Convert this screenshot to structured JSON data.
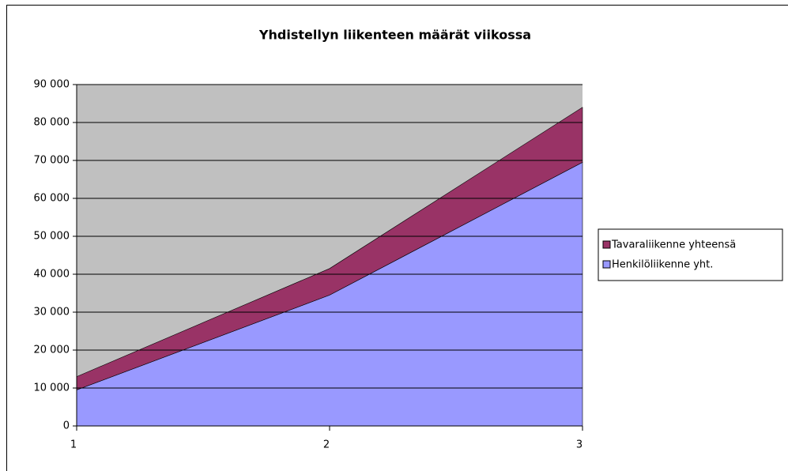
{
  "chart_data": {
    "type": "area",
    "stacked": true,
    "title": "Yhdistellyn liikenteen määrät viikossa",
    "categories": [
      "1",
      "2",
      "3"
    ],
    "series": [
      {
        "name": "Henkilöliikenne yht.",
        "color": "#9999ff",
        "values": [
          9500,
          34500,
          69500
        ]
      },
      {
        "name": "Tavaraliikenne yhteensä",
        "color": "#993366",
        "values": [
          3500,
          7000,
          14500
        ]
      }
    ],
    "ylim": [
      0,
      90000
    ],
    "yticks": [
      0,
      {
        "value": 10000,
        "label": "10 000"
      },
      {
        "value": 20000,
        "label": "20 000"
      },
      {
        "value": 30000,
        "label": "30 000"
      },
      {
        "value": 40000,
        "label": "40 000"
      },
      {
        "value": 50000,
        "label": "50 000"
      },
      {
        "value": 60000,
        "label": "60 000"
      },
      {
        "value": 70000,
        "label": "70 000"
      },
      {
        "value": 80000,
        "label": "80 000"
      },
      {
        "value": 90000,
        "label": "90 000"
      }
    ],
    "grid": true,
    "plot_background": "#c0c0c0",
    "legend": "right"
  }
}
